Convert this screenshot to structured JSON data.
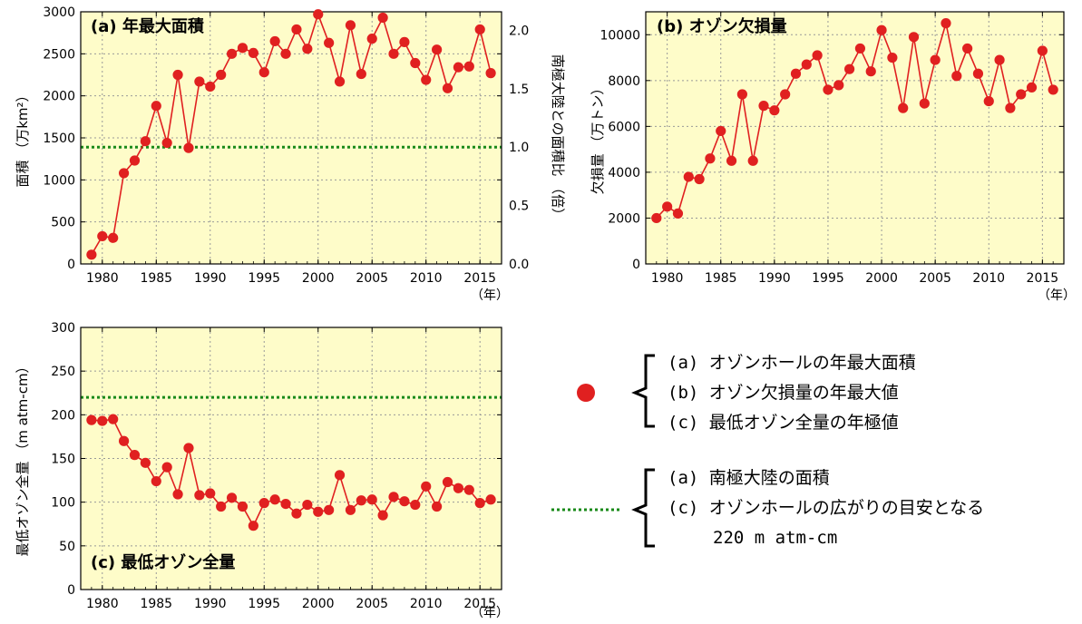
{
  "chart_data": [
    {
      "id": "a",
      "type": "line",
      "title": "(a) 年最大面積",
      "xlabel": "（年）",
      "ylabel": "面積 （万km²）",
      "ylabel2": "南極大陸との面積比 （倍）",
      "xlim": [
        1978,
        2017
      ],
      "ylim": [
        0,
        3000
      ],
      "xticks": [
        1980,
        1985,
        1990,
        1995,
        2000,
        2005,
        2010,
        2015
      ],
      "yticks": [
        0,
        500,
        1000,
        1500,
        2000,
        2500,
        3000
      ],
      "y2ticks": [
        "0.0",
        "0.5",
        "1.0",
        "1.5",
        "2.0"
      ],
      "y2ratio": 1390,
      "reference_line": 1390,
      "grid": true,
      "x": [
        1979,
        1980,
        1981,
        1982,
        1983,
        1984,
        1985,
        1986,
        1987,
        1988,
        1989,
        1990,
        1991,
        1992,
        1993,
        1994,
        1995,
        1996,
        1997,
        1998,
        1999,
        2000,
        2001,
        2002,
        2003,
        2004,
        2005,
        2006,
        2007,
        2008,
        2009,
        2010,
        2011,
        2012,
        2013,
        2014,
        2015,
        2016
      ],
      "values": [
        110,
        330,
        310,
        1080,
        1230,
        1460,
        1880,
        1440,
        2250,
        1380,
        2170,
        2110,
        2250,
        2500,
        2570,
        2510,
        2280,
        2650,
        2500,
        2790,
        2560,
        2970,
        2630,
        2170,
        2840,
        2260,
        2680,
        2930,
        2500,
        2640,
        2390,
        2190,
        2550,
        2090,
        2340,
        2350,
        2790,
        2270
      ]
    },
    {
      "id": "b",
      "type": "line",
      "title": "(b) オゾン欠損量",
      "xlabel": "（年）",
      "ylabel": "欠損量 （万トン）",
      "xlim": [
        1978,
        2017
      ],
      "ylim": [
        0,
        11000
      ],
      "xticks": [
        1980,
        1985,
        1990,
        1995,
        2000,
        2005,
        2010,
        2015
      ],
      "yticks": [
        0,
        2000,
        4000,
        6000,
        8000,
        10000
      ],
      "grid": true,
      "x": [
        1979,
        1980,
        1981,
        1982,
        1983,
        1984,
        1985,
        1986,
        1987,
        1988,
        1989,
        1990,
        1991,
        1992,
        1993,
        1994,
        1995,
        1996,
        1997,
        1998,
        1999,
        2000,
        2001,
        2002,
        2003,
        2004,
        2005,
        2006,
        2007,
        2008,
        2009,
        2010,
        2011,
        2012,
        2013,
        2014,
        2015,
        2016
      ],
      "values": [
        2000,
        2500,
        2200,
        3800,
        3700,
        4600,
        5800,
        4500,
        7400,
        4500,
        6900,
        6700,
        7400,
        8300,
        8700,
        9100,
        7600,
        7800,
        8500,
        9400,
        8400,
        10200,
        9000,
        6800,
        9900,
        7000,
        8900,
        10500,
        8200,
        9400,
        8300,
        7100,
        8900,
        6800,
        7400,
        7700,
        9300,
        7600
      ]
    },
    {
      "id": "c",
      "type": "line",
      "title": "(c) 最低オゾン全量",
      "xlabel": "（年）",
      "ylabel": "最低オゾン全量 （m atm-cm）",
      "xlim": [
        1978,
        2017
      ],
      "ylim": [
        0,
        300
      ],
      "xticks": [
        1980,
        1985,
        1990,
        1995,
        2000,
        2005,
        2010,
        2015
      ],
      "yticks": [
        0,
        50,
        100,
        150,
        200,
        250,
        300
      ],
      "reference_line": 220,
      "grid": true,
      "x": [
        1979,
        1980,
        1981,
        1982,
        1983,
        1984,
        1985,
        1986,
        1987,
        1988,
        1989,
        1990,
        1991,
        1992,
        1993,
        1994,
        1995,
        1996,
        1997,
        1998,
        1999,
        2000,
        2001,
        2002,
        2003,
        2004,
        2005,
        2006,
        2007,
        2008,
        2009,
        2010,
        2011,
        2012,
        2013,
        2014,
        2015,
        2016
      ],
      "values": [
        194,
        193,
        195,
        170,
        154,
        145,
        124,
        140,
        109,
        162,
        108,
        110,
        95,
        105,
        95,
        73,
        99,
        103,
        98,
        87,
        97,
        89,
        91,
        131,
        91,
        102,
        103,
        85,
        106,
        101,
        97,
        118,
        95,
        123,
        116,
        114,
        99,
        103
      ]
    }
  ],
  "colors": {
    "plot_bg": "#fefcc9",
    "series": "#e02020",
    "reference": "#1a8a1a",
    "grid": "#999999"
  },
  "legend": {
    "marker_icon": "red-dot-icon",
    "marker_lines": [
      "(a) オゾンホールの年最大面積",
      "(b) オゾン欠損量の年最大値",
      "(c) 最低オゾン全量の年極値"
    ],
    "line_icon": "green-dotted-line-icon",
    "line_lines": [
      "(a) 南極大陸の面積",
      "(c) オゾンホールの広がりの目安となる",
      "220 m atm-cm"
    ]
  }
}
